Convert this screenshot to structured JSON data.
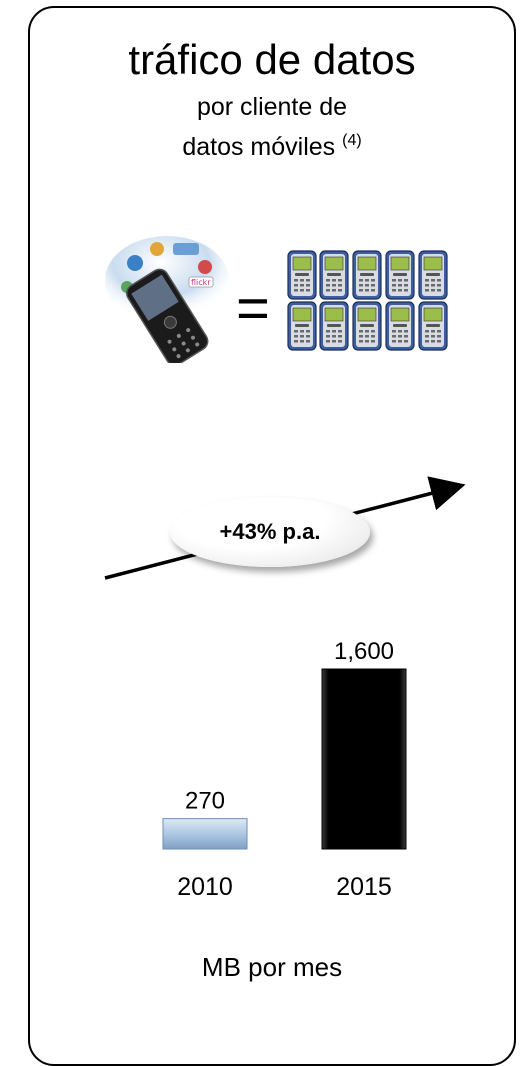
{
  "header": {
    "title": "tráfico de datos",
    "subtitle_line1": "por cliente de",
    "subtitle_line2": "datos móviles",
    "footnote_ref": "(4)"
  },
  "illustration": {
    "equals_sign": "=",
    "smartphone_icon": "smartphone-icon",
    "feature_phone_icon": "feature-phone-icon",
    "feature_phone_count": 10
  },
  "growth": {
    "label": "+43% p.a."
  },
  "chart_data": {
    "type": "bar",
    "categories": [
      "2010",
      "2015"
    ],
    "values": [
      270,
      1600
    ],
    "value_labels": [
      "270",
      "1,600"
    ],
    "ylim": [
      0,
      1600
    ],
    "units_label": "MB por mes",
    "colors": [
      "#a9c4e0",
      "#000000"
    ],
    "grid": false,
    "legend": "none"
  }
}
